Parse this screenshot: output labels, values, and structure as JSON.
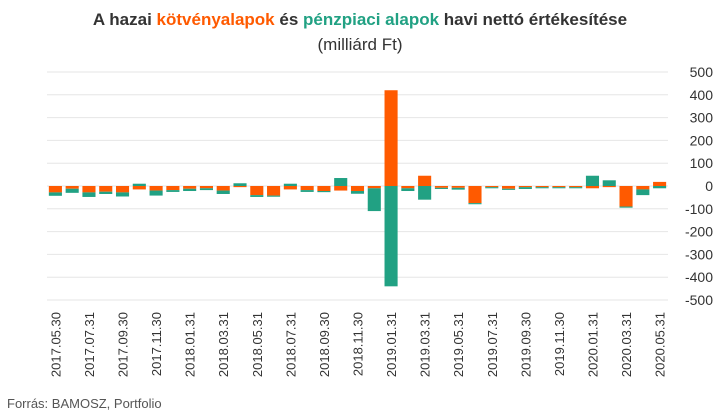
{
  "title": {
    "prefix": "A hazai ",
    "bond_funds": "kötvényalapok",
    "middle": " és ",
    "money_market_funds": "pénzpiaci alapok",
    "suffix": " havi nettó értékesítése",
    "subtitle": "(milliárd Ft)"
  },
  "source": "Forrás: BAMOSZ, Portfolio",
  "colors": {
    "bond": "#ff5a00",
    "money_market": "#21a183",
    "grid": "#e6e6e6",
    "text": "#333333"
  },
  "chart_data": {
    "type": "bar",
    "stacked": true,
    "grid": true,
    "ylim": [
      -500,
      500
    ],
    "yticks": [
      500,
      400,
      300,
      200,
      100,
      0,
      -100,
      -200,
      -300,
      -400,
      -500
    ],
    "x_tick_labels": [
      "2017.05.30",
      "2017.07.31",
      "2017.09.30",
      "2017.11.30",
      "2018.01.31",
      "2018.03.31",
      "2018.05.31",
      "2018.07.31",
      "2018.09.30",
      "2018.11.30",
      "2019.01.31",
      "2019.03.31",
      "2019.05.31",
      "2019.07.31",
      "2019.09.30",
      "2019.11.30",
      "2020.01.31",
      "2020.03.31",
      "2020.05.31"
    ],
    "categories": [
      "2017.05",
      "2017.06",
      "2017.07",
      "2017.08",
      "2017.09",
      "2017.10",
      "2017.11",
      "2017.12",
      "2018.01",
      "2018.02",
      "2018.03",
      "2018.04",
      "2018.05",
      "2018.06",
      "2018.07",
      "2018.08",
      "2018.09",
      "2018.10",
      "2018.11",
      "2018.12",
      "2019.01",
      "2019.02",
      "2019.03",
      "2019.04",
      "2019.05",
      "2019.06",
      "2019.07",
      "2019.08",
      "2019.09",
      "2019.10",
      "2019.11",
      "2019.12",
      "2020.01",
      "2020.02",
      "2020.03",
      "2020.04",
      "2020.05"
    ],
    "series": [
      {
        "name": "kötvényalapok",
        "color": "#ff5a00",
        "values": [
          -28,
          -12,
          -28,
          -25,
          -28,
          -15,
          -20,
          -18,
          -12,
          -10,
          -20,
          -5,
          -40,
          -42,
          -15,
          -18,
          -22,
          -20,
          -22,
          -10,
          420,
          -10,
          45,
          -8,
          -8,
          -75,
          -5,
          -12,
          -5,
          -5,
          -5,
          -5,
          -10,
          -5,
          -90,
          -15,
          18
        ]
      },
      {
        "name": "pénzpiaci alapok",
        "color": "#21a183",
        "values": [
          -15,
          -18,
          -20,
          -10,
          -18,
          10,
          -22,
          -8,
          -10,
          -8,
          -15,
          12,
          -8,
          -5,
          10,
          -8,
          -5,
          35,
          -12,
          -100,
          -440,
          -12,
          -60,
          -5,
          -8,
          -5,
          -5,
          -5,
          -8,
          -5,
          -5,
          -5,
          45,
          25,
          -5,
          -25,
          -10
        ]
      }
    ]
  }
}
